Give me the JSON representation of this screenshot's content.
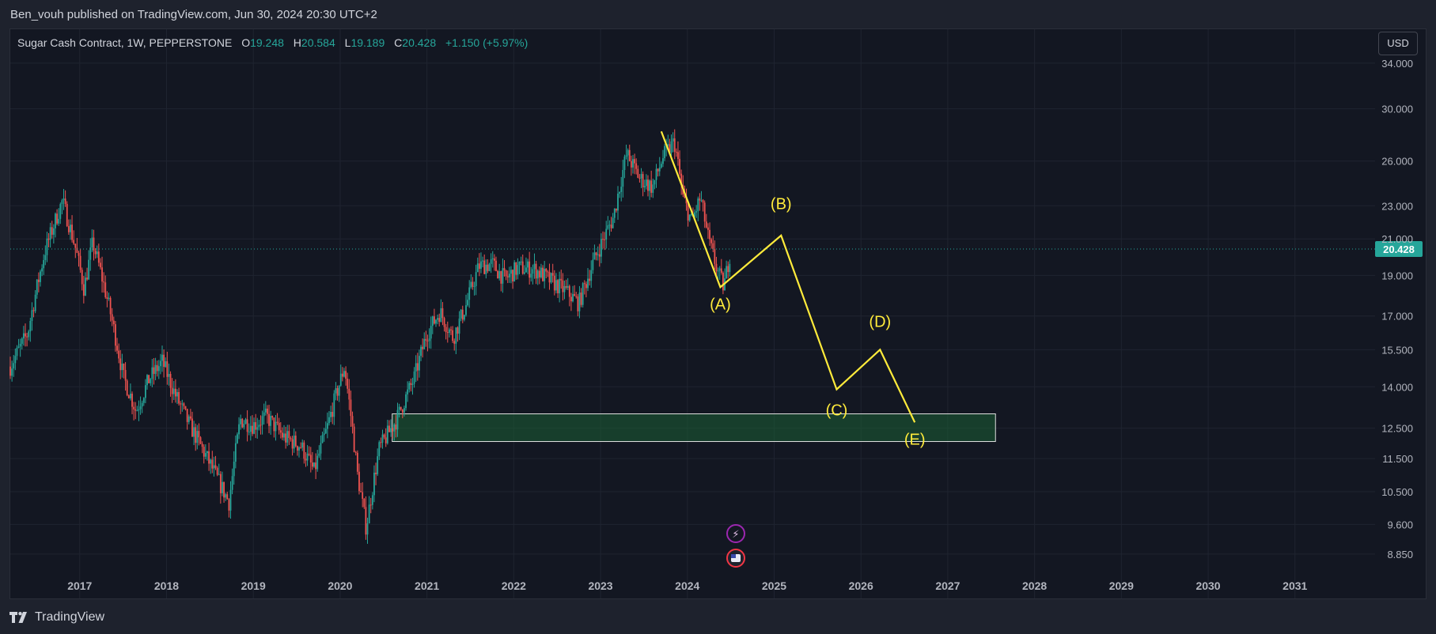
{
  "header": {
    "published": "Ben_vouh published on TradingView.com, Jun 30, 2024 20:30 UTC+2"
  },
  "legend": {
    "symbol": "Sugar Cash Contract, 1W, PEPPERSTONE",
    "o_label": "O",
    "o": "19.248",
    "h_label": "H",
    "h": "20.584",
    "l_label": "L",
    "l": "19.189",
    "c_label": "C",
    "c": "20.428",
    "change": "+1.150 (+5.97%)"
  },
  "currency_button": "USD",
  "last_price_label": "20.428",
  "footer": {
    "brand": "TradingView"
  },
  "icons": {
    "logo": "tradingview-logo-icon",
    "event1": "lightning-icon",
    "event2": "us-flag-icon"
  },
  "colors": {
    "up": "#26a69a",
    "down": "#ef5350",
    "wave": "#ffeb3b",
    "zone_fill": "#1b5e35",
    "zone_border": "#e0e0e0",
    "grid": "#1f2430"
  },
  "chart_data": {
    "type": "candlestick",
    "title": "Sugar Cash Contract, 1W, PEPPERSTONE",
    "scale": "log",
    "ylim": [
      8.4,
      35.5
    ],
    "xlim": [
      2016.2,
      2031.85
    ],
    "y_ticks": [
      "34.000",
      "30.000",
      "26.000",
      "23.000",
      "21.000",
      "19.000",
      "17.000",
      "15.500",
      "14.000",
      "12.500",
      "11.500",
      "10.500",
      "9.600",
      "8.850"
    ],
    "x_ticks": [
      "2017",
      "2018",
      "2019",
      "2020",
      "2021",
      "2022",
      "2023",
      "2024",
      "2025",
      "2026",
      "2027",
      "2028",
      "2029",
      "2030",
      "2031"
    ],
    "last_price": 20.428,
    "price_path": [
      [
        2016.2,
        14.8
      ],
      [
        2016.4,
        16.2
      ],
      [
        2016.6,
        20.3
      ],
      [
        2016.8,
        23.3
      ],
      [
        2016.95,
        20.5
      ],
      [
        2017.05,
        18.3
      ],
      [
        2017.15,
        20.8
      ],
      [
        2017.35,
        17.2
      ],
      [
        2017.5,
        14.4
      ],
      [
        2017.65,
        13.1
      ],
      [
        2017.8,
        14.3
      ],
      [
        2017.95,
        15.0
      ],
      [
        2018.1,
        13.7
      ],
      [
        2018.25,
        12.7
      ],
      [
        2018.45,
        11.6
      ],
      [
        2018.6,
        10.8
      ],
      [
        2018.72,
        10.2
      ],
      [
        2018.85,
        12.8
      ],
      [
        2019.0,
        12.6
      ],
      [
        2019.15,
        12.9
      ],
      [
        2019.35,
        12.2
      ],
      [
        2019.55,
        11.9
      ],
      [
        2019.7,
        11.1
      ],
      [
        2019.85,
        12.5
      ],
      [
        2020.05,
        14.8
      ],
      [
        2020.2,
        11.0
      ],
      [
        2020.3,
        9.5
      ],
      [
        2020.45,
        11.8
      ],
      [
        2020.65,
        12.8
      ],
      [
        2020.85,
        14.3
      ],
      [
        2021.0,
        16.2
      ],
      [
        2021.15,
        17.2
      ],
      [
        2021.3,
        16.0
      ],
      [
        2021.45,
        17.5
      ],
      [
        2021.6,
        19.5
      ],
      [
        2021.75,
        19.6
      ],
      [
        2021.9,
        18.8
      ],
      [
        2022.05,
        19.4
      ],
      [
        2022.25,
        19.3
      ],
      [
        2022.4,
        18.8
      ],
      [
        2022.6,
        18.2
      ],
      [
        2022.75,
        17.6
      ],
      [
        2022.9,
        19.5
      ],
      [
        2023.05,
        21.2
      ],
      [
        2023.15,
        22.3
      ],
      [
        2023.3,
        26.5
      ],
      [
        2023.45,
        24.8
      ],
      [
        2023.6,
        24.2
      ],
      [
        2023.72,
        26.3
      ],
      [
        2023.85,
        27.4
      ],
      [
        2023.95,
        23.5
      ],
      [
        2024.05,
        22.0
      ],
      [
        2024.15,
        23.5
      ],
      [
        2024.25,
        20.8
      ],
      [
        2024.35,
        19.2
      ],
      [
        2024.42,
        18.4
      ],
      [
        2024.5,
        20.4
      ]
    ],
    "elliott_wave": {
      "points": [
        [
          2023.7,
          28.2
        ],
        [
          2024.38,
          18.4
        ],
        [
          2025.08,
          21.2
        ],
        [
          2025.72,
          13.9
        ],
        [
          2026.22,
          15.5
        ],
        [
          2026.62,
          12.7
        ]
      ],
      "labels": [
        {
          "text": "(A)",
          "x": 2024.38,
          "y": 17.3
        },
        {
          "text": "(B)",
          "x": 2025.08,
          "y": 22.8
        },
        {
          "text": "(C)",
          "x": 2025.72,
          "y": 12.95
        },
        {
          "text": "(D)",
          "x": 2026.22,
          "y": 16.5
        },
        {
          "text": "(E)",
          "x": 2026.62,
          "y": 11.95
        }
      ]
    },
    "support_zone": {
      "x_start": 2020.6,
      "x_end": 2027.55,
      "y_low": 12.05,
      "y_high": 13.0
    }
  }
}
